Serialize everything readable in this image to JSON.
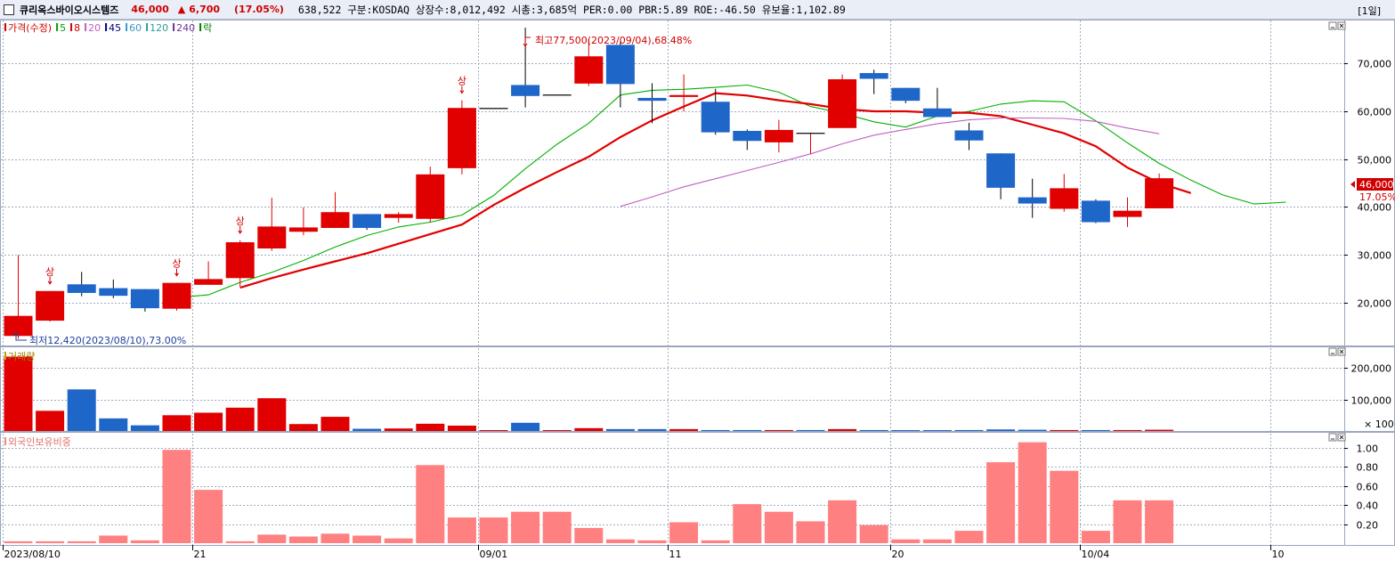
{
  "header": {
    "name": "큐리옥스바이오시스템즈",
    "price": "46,000",
    "change_arrow": "▲",
    "change": "6,700",
    "change_pct": "(17.05%)",
    "info": "638,522  구분:KOSDAQ 상장수:8,012,492 시총:3,685억 PER:0.00 PBR:5.89 ROE:-46.50 유보율:1,102.89",
    "period": "[1일]"
  },
  "price_legend": [
    {
      "label": "가격(수정)",
      "color": "#d00000"
    },
    {
      "label": "5",
      "color": "#00a000"
    },
    {
      "label": "8",
      "color": "#d00000"
    },
    {
      "label": "20",
      "color": "#c060c0"
    },
    {
      "label": "45",
      "color": "#000080"
    },
    {
      "label": "60",
      "color": "#3a9ac9"
    },
    {
      "label": "120",
      "color": "#2e9c9c"
    },
    {
      "label": "240",
      "color": "#7030a0"
    },
    {
      "label": "락",
      "color": "#008000"
    }
  ],
  "annotations": {
    "high": "최고77,500(2023/09/04),68.48%",
    "low": "최저12,420(2023/08/10),73.00%",
    "limit_up": "상",
    "last_price": "46,000",
    "last_pct": "17.05%"
  },
  "volume_title": "거래량",
  "foreign_title": "외국인보유비중",
  "volume_unit": "× 100",
  "chart_data": [
    {
      "type": "candlestick",
      "ylim": [
        11000,
        79000
      ],
      "y_ticks": [
        {
          "label": "20,000",
          "value": 20000
        },
        {
          "label": "30,000",
          "value": 30000
        },
        {
          "label": "40,000",
          "value": 40000
        },
        {
          "label": "50,000",
          "value": 50000
        },
        {
          "label": "60,000",
          "value": 60000
        },
        {
          "label": "70,000",
          "value": 70000
        }
      ],
      "x_ticks": [
        {
          "label": "2023/08/10",
          "index": 0
        },
        {
          "label": "21",
          "index": 6
        },
        {
          "label": "09/01",
          "index": 15
        },
        {
          "label": "11",
          "index": 21
        },
        {
          "label": "20",
          "index": 28
        },
        {
          "label": "10/04",
          "index": 34
        },
        {
          "label": "10",
          "index": 40
        }
      ],
      "candles": [
        {
          "open": 13000,
          "high": 29900,
          "low": 12420,
          "close": 17200
        },
        {
          "open": 16200,
          "high": 22400,
          "low": 16000,
          "close": 22400
        },
        {
          "open": 23800,
          "high": 26400,
          "low": 21300,
          "close": 22000
        },
        {
          "open": 23000,
          "high": 24800,
          "low": 20900,
          "close": 21400
        },
        {
          "open": 22800,
          "high": 22800,
          "low": 18100,
          "close": 18800
        },
        {
          "open": 18700,
          "high": 24100,
          "low": 18300,
          "close": 24100
        },
        {
          "open": 23700,
          "high": 28600,
          "low": 23700,
          "close": 24900
        },
        {
          "open": 25100,
          "high": 33000,
          "low": 23300,
          "close": 32600
        },
        {
          "open": 31300,
          "high": 41900,
          "low": 30800,
          "close": 35900
        },
        {
          "open": 34800,
          "high": 39900,
          "low": 34100,
          "close": 35700
        },
        {
          "open": 35600,
          "high": 43100,
          "low": 35600,
          "close": 38900
        },
        {
          "open": 38500,
          "high": 38500,
          "low": 35200,
          "close": 35600
        },
        {
          "open": 37700,
          "high": 38900,
          "low": 36700,
          "close": 38500
        },
        {
          "open": 37500,
          "high": 48400,
          "low": 36800,
          "close": 46800
        },
        {
          "open": 48100,
          "high": 62300,
          "low": 46800,
          "close": 60700
        },
        {
          "open": 60700,
          "high": 60700,
          "low": 60700,
          "close": 60700
        },
        {
          "open": 65500,
          "high": 77500,
          "low": 60800,
          "close": 63200
        },
        {
          "open": 63500,
          "high": 63500,
          "low": 63500,
          "close": 63500
        },
        {
          "open": 65800,
          "high": 75100,
          "low": 65300,
          "close": 71500
        },
        {
          "open": 73900,
          "high": 74600,
          "low": 60800,
          "close": 65700
        },
        {
          "open": 62800,
          "high": 65900,
          "low": 57500,
          "close": 62200
        },
        {
          "open": 63000,
          "high": 67700,
          "low": 60000,
          "close": 63400
        },
        {
          "open": 62000,
          "high": 64700,
          "low": 55100,
          "close": 55600
        },
        {
          "open": 55900,
          "high": 56200,
          "low": 51900,
          "close": 53800
        },
        {
          "open": 53500,
          "high": 58200,
          "low": 51400,
          "close": 56100
        },
        {
          "open": 55500,
          "high": 55500,
          "low": 51100,
          "close": 55500
        },
        {
          "open": 56500,
          "high": 67700,
          "low": 56500,
          "close": 66700
        },
        {
          "open": 68000,
          "high": 68700,
          "low": 63600,
          "close": 66800
        },
        {
          "open": 64900,
          "high": 64900,
          "low": 61700,
          "close": 62200
        },
        {
          "open": 60600,
          "high": 64900,
          "low": 58800,
          "close": 58800
        },
        {
          "open": 56000,
          "high": 57600,
          "low": 51900,
          "close": 53900
        },
        {
          "open": 51200,
          "high": 51200,
          "low": 41600,
          "close": 44000
        },
        {
          "open": 42000,
          "high": 45900,
          "low": 37700,
          "close": 40700
        },
        {
          "open": 39600,
          "high": 46900,
          "low": 39000,
          "close": 43900
        },
        {
          "open": 41300,
          "high": 41600,
          "low": 36600,
          "close": 36800
        },
        {
          "open": 37900,
          "high": 42000,
          "low": 35800,
          "close": 39200
        },
        {
          "open": 39700,
          "high": 47000,
          "low": 39700,
          "close": 46000
        }
      ],
      "limit_up_index": [
        1,
        5,
        7,
        14
      ],
      "ma_series": [
        {
          "name": "5",
          "color": "#00b000",
          "start": 5,
          "values": [
            21000,
            21600,
            24200,
            26300,
            28800,
            31600,
            34000,
            35800,
            36800,
            38300,
            42400,
            48000,
            53100,
            57500,
            63400,
            64400,
            64600,
            65000,
            65500,
            64000,
            61000,
            59600,
            57800,
            56700,
            59000,
            60000,
            61500,
            62200,
            62000,
            58000,
            53400,
            49100,
            45600,
            42500,
            40600,
            41000
          ]
        },
        {
          "name": "8",
          "color": "#e00000",
          "start": 7,
          "values": [
            23100,
            25100,
            26900,
            28600,
            30300,
            32300,
            34300,
            36300,
            40400,
            44000,
            47300,
            50500,
            54600,
            58100,
            61000,
            63800,
            63300,
            62300,
            61500,
            60500,
            60000,
            60000,
            59700,
            59700,
            59000,
            57200,
            55400,
            52700,
            48200,
            45000,
            42900
          ]
        },
        {
          "name": "20",
          "color": "#c060c0",
          "start": 19,
          "values": [
            40100,
            42100,
            44200,
            45900,
            47600,
            49300,
            51100,
            53200,
            55000,
            56200,
            57400,
            58200,
            58600,
            58600,
            58500,
            57900,
            56500,
            55300
          ]
        }
      ]
    },
    {
      "type": "bar",
      "title": "거래량",
      "ylim": [
        0,
        2600
      ],
      "y_ticks": [
        {
          "label": "100,000",
          "value": 1000
        },
        {
          "label": "200,000",
          "value": 2000
        }
      ],
      "values": [
        2360,
        640,
        1320,
        400,
        180,
        500,
        580,
        740,
        1040,
        220,
        450,
        70,
        80,
        230,
        170,
        0,
        260,
        0,
        90,
        60,
        60,
        60,
        30,
        30,
        30,
        30,
        60,
        30,
        20,
        20,
        30,
        50,
        40,
        30,
        30,
        30,
        40
      ],
      "colors": [
        "up",
        "up",
        "down",
        "down",
        "down",
        "up",
        "up",
        "up",
        "up",
        "up",
        "up",
        "down",
        "up",
        "up",
        "up",
        "up",
        "down",
        "up",
        "up",
        "down",
        "down",
        "up",
        "down",
        "down",
        "up",
        "down",
        "up",
        "down",
        "down",
        "down",
        "down",
        "down",
        "down",
        "up",
        "down",
        "up",
        "up"
      ]
    },
    {
      "type": "bar",
      "title": "외국인보유비중",
      "ylim": [
        0,
        1.15
      ],
      "y_ticks": [
        {
          "label": "0.20",
          "value": 0.2
        },
        {
          "label": "0.40",
          "value": 0.4
        },
        {
          "label": "0.60",
          "value": 0.6
        },
        {
          "label": "0.80",
          "value": 0.8
        },
        {
          "label": "1.00",
          "value": 1.0
        }
      ],
      "values": [
        0.02,
        0.02,
        0.02,
        0.08,
        0.03,
        0.98,
        0.56,
        0.02,
        0.09,
        0.07,
        0.1,
        0.08,
        0.05,
        0.82,
        0.27,
        0.27,
        0.33,
        0.33,
        0.16,
        0.04,
        0.03,
        0.22,
        0.03,
        0.41,
        0.33,
        0.23,
        0.45,
        0.19,
        0.04,
        0.04,
        0.13,
        0.85,
        1.06,
        0.76,
        0.13,
        0.45,
        0.45
      ]
    }
  ],
  "colors": {
    "up": "#e00000",
    "down": "#1f66c9",
    "foreign": "#ff8080"
  }
}
